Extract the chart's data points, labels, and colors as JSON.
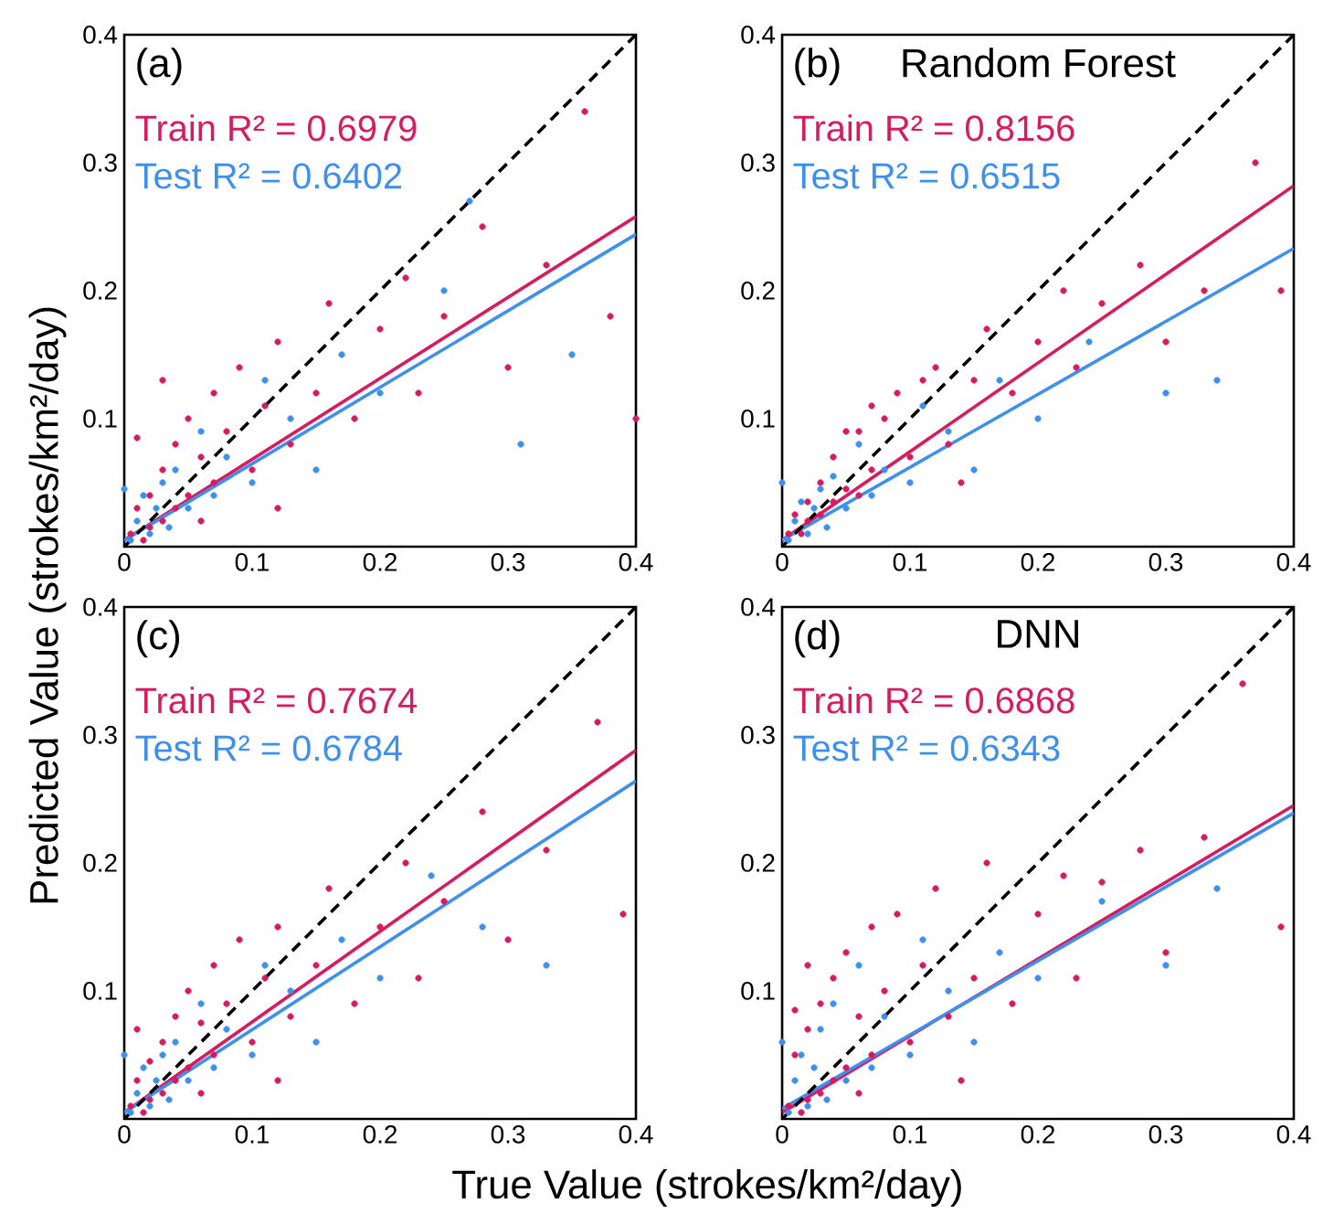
{
  "chart_data": [
    {
      "type": "scatter",
      "title": "(a)",
      "ylabel": "Predicted Value (strokes/km²/day)",
      "xlim": [
        0,
        0.4
      ],
      "ylim": [
        0,
        0.4
      ],
      "xticks": [
        0,
        0.1,
        0.2,
        0.3,
        0.4
      ],
      "yticks": [
        0.1,
        0.2,
        0.3,
        0.4
      ],
      "series": [
        {
          "name": "Train R² = 0.6979",
          "color": "#d81b60",
          "x": [
            0.005,
            0.01,
            0.015,
            0.02,
            0.02,
            0.03,
            0.03,
            0.04,
            0.04,
            0.05,
            0.05,
            0.06,
            0.06,
            0.07,
            0.07,
            0.08,
            0.09,
            0.1,
            0.11,
            0.12,
            0.13,
            0.15,
            0.16,
            0.18,
            0.2,
            0.22,
            0.23,
            0.25,
            0.28,
            0.3,
            0.33,
            0.36,
            0.38,
            0.4,
            0.12,
            0.03,
            0.01
          ],
          "values": [
            0.01,
            0.03,
            0.005,
            0.04,
            0.015,
            0.06,
            0.02,
            0.08,
            0.03,
            0.1,
            0.04,
            0.07,
            0.02,
            0.12,
            0.05,
            0.09,
            0.14,
            0.06,
            0.11,
            0.16,
            0.08,
            0.12,
            0.19,
            0.1,
            0.17,
            0.21,
            0.12,
            0.18,
            0.25,
            0.14,
            0.22,
            0.34,
            0.18,
            0.1,
            0.03,
            0.13,
            0.085
          ]
        },
        {
          "name": "Test R² = 0.6402",
          "color": "#3d8ff0",
          "x": [
            0.005,
            0.01,
            0.015,
            0.02,
            0.025,
            0.03,
            0.035,
            0.04,
            0.05,
            0.06,
            0.07,
            0.08,
            0.1,
            0.11,
            0.13,
            0.15,
            0.17,
            0.2,
            0.25,
            0.27,
            0.31,
            0.35,
            0.0
          ],
          "values": [
            0.005,
            0.02,
            0.04,
            0.01,
            0.03,
            0.05,
            0.015,
            0.06,
            0.03,
            0.09,
            0.04,
            0.07,
            0.05,
            0.13,
            0.1,
            0.06,
            0.15,
            0.12,
            0.2,
            0.27,
            0.08,
            0.15,
            0.045
          ]
        },
        {
          "type": "line",
          "color": "#d81b60",
          "x": [
            0,
            0.4
          ],
          "values": [
            0.005,
            0.258
          ]
        },
        {
          "type": "line",
          "color": "#3d8ff0",
          "x": [
            0,
            0.4
          ],
          "values": [
            0.005,
            0.244
          ]
        },
        {
          "type": "line",
          "color": "#000000",
          "line_style": "dashed",
          "x": [
            0,
            0.4
          ],
          "values": [
            0,
            0.4
          ]
        }
      ]
    },
    {
      "type": "scatter",
      "title": "(b)",
      "subtitle": "Random Forest",
      "xlim": [
        0,
        0.4
      ],
      "ylim": [
        0,
        0.4
      ],
      "xticks": [
        0,
        0.1,
        0.2,
        0.3,
        0.4
      ],
      "yticks": [
        0.1,
        0.2,
        0.3,
        0.4
      ],
      "series": [
        {
          "name": "Train R² = 0.8156",
          "color": "#d81b60",
          "x": [
            0.005,
            0.01,
            0.015,
            0.02,
            0.02,
            0.03,
            0.03,
            0.04,
            0.04,
            0.05,
            0.05,
            0.06,
            0.06,
            0.07,
            0.07,
            0.08,
            0.09,
            0.1,
            0.11,
            0.12,
            0.13,
            0.15,
            0.16,
            0.18,
            0.2,
            0.22,
            0.23,
            0.25,
            0.28,
            0.3,
            0.33,
            0.37,
            0.39,
            0.14
          ],
          "values": [
            0.01,
            0.025,
            0.01,
            0.035,
            0.02,
            0.05,
            0.025,
            0.07,
            0.035,
            0.09,
            0.045,
            0.09,
            0.04,
            0.11,
            0.06,
            0.1,
            0.12,
            0.07,
            0.13,
            0.14,
            0.08,
            0.13,
            0.17,
            0.12,
            0.16,
            0.2,
            0.14,
            0.19,
            0.22,
            0.16,
            0.2,
            0.3,
            0.2,
            0.05
          ]
        },
        {
          "name": "Test R² = 0.6515",
          "color": "#3d8ff0",
          "x": [
            0.005,
            0.01,
            0.015,
            0.02,
            0.025,
            0.03,
            0.035,
            0.04,
            0.05,
            0.06,
            0.07,
            0.08,
            0.1,
            0.11,
            0.13,
            0.15,
            0.17,
            0.2,
            0.24,
            0.3,
            0.34,
            0.0
          ],
          "values": [
            0.005,
            0.02,
            0.035,
            0.01,
            0.03,
            0.045,
            0.015,
            0.055,
            0.03,
            0.08,
            0.04,
            0.06,
            0.05,
            0.11,
            0.09,
            0.06,
            0.13,
            0.1,
            0.16,
            0.12,
            0.13,
            0.05
          ]
        },
        {
          "type": "line",
          "color": "#d81b60",
          "x": [
            0,
            0.4
          ],
          "values": [
            0.005,
            0.282
          ]
        },
        {
          "type": "line",
          "color": "#3d8ff0",
          "x": [
            0,
            0.4
          ],
          "values": [
            0.005,
            0.233
          ]
        },
        {
          "type": "line",
          "color": "#000000",
          "line_style": "dashed",
          "x": [
            0,
            0.4
          ],
          "values": [
            0,
            0.4
          ]
        }
      ]
    },
    {
      "type": "scatter",
      "title": "(c)",
      "xlabel": "True Value (strokes/km²/day)",
      "xlim": [
        0,
        0.4
      ],
      "ylim": [
        0,
        0.4
      ],
      "xticks": [
        0,
        0.1,
        0.2,
        0.3,
        0.4
      ],
      "yticks": [
        0.1,
        0.2,
        0.3,
        0.4
      ],
      "series": [
        {
          "name": "Train R² = 0.7674",
          "color": "#d81b60",
          "x": [
            0.005,
            0.01,
            0.015,
            0.02,
            0.02,
            0.03,
            0.03,
            0.04,
            0.04,
            0.05,
            0.05,
            0.06,
            0.06,
            0.07,
            0.07,
            0.08,
            0.09,
            0.1,
            0.11,
            0.12,
            0.13,
            0.15,
            0.16,
            0.18,
            0.2,
            0.22,
            0.23,
            0.25,
            0.28,
            0.3,
            0.33,
            0.37,
            0.39,
            0.12,
            0.01
          ],
          "values": [
            0.01,
            0.03,
            0.005,
            0.045,
            0.015,
            0.06,
            0.02,
            0.08,
            0.03,
            0.1,
            0.04,
            0.075,
            0.02,
            0.12,
            0.05,
            0.09,
            0.14,
            0.06,
            0.11,
            0.15,
            0.08,
            0.12,
            0.18,
            0.09,
            0.15,
            0.2,
            0.11,
            0.17,
            0.24,
            0.14,
            0.21,
            0.31,
            0.16,
            0.03,
            0.07
          ]
        },
        {
          "name": "Test R² = 0.6784",
          "color": "#3d8ff0",
          "x": [
            0.005,
            0.01,
            0.015,
            0.02,
            0.025,
            0.03,
            0.035,
            0.04,
            0.05,
            0.06,
            0.07,
            0.08,
            0.1,
            0.11,
            0.13,
            0.15,
            0.17,
            0.2,
            0.24,
            0.28,
            0.33,
            0.0
          ],
          "values": [
            0.005,
            0.02,
            0.04,
            0.01,
            0.03,
            0.05,
            0.015,
            0.06,
            0.03,
            0.09,
            0.04,
            0.07,
            0.05,
            0.12,
            0.1,
            0.06,
            0.14,
            0.11,
            0.19,
            0.15,
            0.12,
            0.05
          ]
        },
        {
          "type": "line",
          "color": "#d81b60",
          "x": [
            0,
            0.4
          ],
          "values": [
            0.005,
            0.288
          ]
        },
        {
          "type": "line",
          "color": "#3d8ff0",
          "x": [
            0,
            0.4
          ],
          "values": [
            0.005,
            0.264
          ]
        },
        {
          "type": "line",
          "color": "#000000",
          "line_style": "dashed",
          "x": [
            0,
            0.4
          ],
          "values": [
            0,
            0.4
          ]
        }
      ]
    },
    {
      "type": "scatter",
      "title": "(d)",
      "subtitle": "DNN",
      "xlim": [
        0,
        0.4
      ],
      "ylim": [
        0,
        0.4
      ],
      "xticks": [
        0,
        0.1,
        0.2,
        0.3,
        0.4
      ],
      "yticks": [
        0.1,
        0.2,
        0.3,
        0.4
      ],
      "series": [
        {
          "name": "Train R² = 0.6868",
          "color": "#d81b60",
          "x": [
            0.005,
            0.01,
            0.015,
            0.02,
            0.02,
            0.03,
            0.03,
            0.04,
            0.04,
            0.05,
            0.05,
            0.06,
            0.06,
            0.07,
            0.07,
            0.08,
            0.09,
            0.1,
            0.11,
            0.12,
            0.13,
            0.15,
            0.16,
            0.18,
            0.2,
            0.22,
            0.23,
            0.25,
            0.28,
            0.3,
            0.33,
            0.36,
            0.39,
            0.14,
            0.01,
            0.02
          ],
          "values": [
            0.01,
            0.05,
            0.005,
            0.07,
            0.015,
            0.09,
            0.02,
            0.11,
            0.03,
            0.13,
            0.04,
            0.08,
            0.02,
            0.15,
            0.05,
            0.1,
            0.16,
            0.06,
            0.12,
            0.18,
            0.08,
            0.11,
            0.2,
            0.09,
            0.16,
            0.19,
            0.11,
            0.185,
            0.21,
            0.13,
            0.22,
            0.34,
            0.15,
            0.03,
            0.085,
            0.12
          ]
        },
        {
          "name": "Test R² = 0.6343",
          "color": "#3d8ff0",
          "x": [
            0.005,
            0.01,
            0.015,
            0.02,
            0.025,
            0.03,
            0.035,
            0.04,
            0.05,
            0.06,
            0.07,
            0.08,
            0.1,
            0.11,
            0.13,
            0.15,
            0.17,
            0.2,
            0.25,
            0.3,
            0.34,
            0.0
          ],
          "values": [
            0.005,
            0.03,
            0.05,
            0.01,
            0.04,
            0.07,
            0.015,
            0.09,
            0.03,
            0.12,
            0.04,
            0.08,
            0.05,
            0.14,
            0.1,
            0.06,
            0.13,
            0.11,
            0.17,
            0.12,
            0.18,
            0.06
          ]
        },
        {
          "type": "line",
          "color": "#d81b60",
          "x": [
            0,
            0.4
          ],
          "values": [
            0.005,
            0.245
          ]
        },
        {
          "type": "line",
          "color": "#3d8ff0",
          "x": [
            0,
            0.4
          ],
          "values": [
            0.008,
            0.239
          ]
        },
        {
          "type": "line",
          "color": "#000000",
          "line_style": "dashed",
          "x": [
            0,
            0.4
          ],
          "values": [
            0,
            0.4
          ]
        }
      ]
    }
  ]
}
